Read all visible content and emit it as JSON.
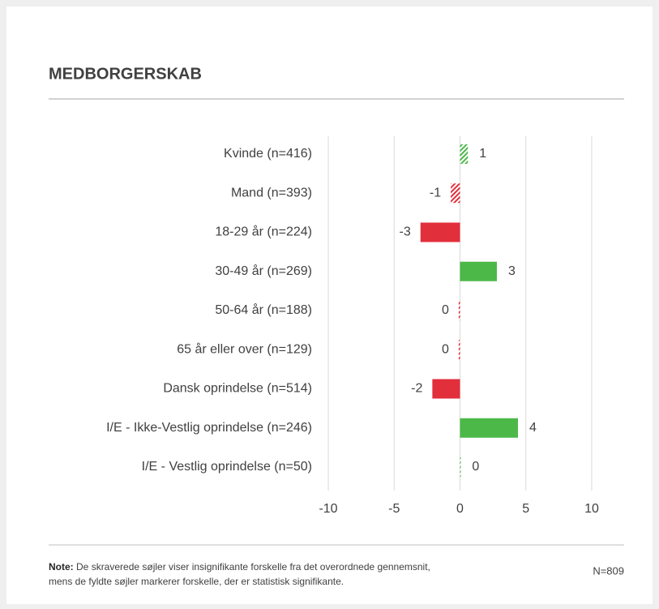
{
  "chart_data": {
    "type": "hbar",
    "title": "MEDBORGERSKAB",
    "categories": [
      "Kvinde (n=416)",
      "Mand (n=393)",
      "18-29 år (n=224)",
      "30-49 år (n=269)",
      "50-64 år (n=188)",
      "65 år eller over (n=129)",
      "Dansk oprindelse (n=514)",
      "I/E - Ikke-Vestlig oprindelse (n=246)",
      "I/E - Vestlig oprindelse (n=50)"
    ],
    "values": [
      0.6,
      -0.7,
      -3.0,
      2.8,
      -0.1,
      -0.1,
      -2.1,
      4.4,
      0.05
    ],
    "value_labels": [
      "1",
      "-1",
      "-3",
      "3",
      "0",
      "0",
      "-2",
      "4",
      "0"
    ],
    "significant": [
      false,
      false,
      true,
      true,
      false,
      false,
      true,
      true,
      false
    ],
    "positive_color": "#4cb848",
    "negative_color": "#e22f3c",
    "xlim": [
      -10,
      10
    ],
    "xticks": [
      -10,
      -5,
      0,
      5,
      10
    ],
    "grid": true,
    "note_label": "Note:",
    "note": [
      "De skraverede søjler viser insignifikante forskelle fra det overordnede gennemsnit,",
      "mens de fyldte søjler markerer forskelle, der er statistisk signifikante."
    ],
    "n_label": "N=809"
  }
}
